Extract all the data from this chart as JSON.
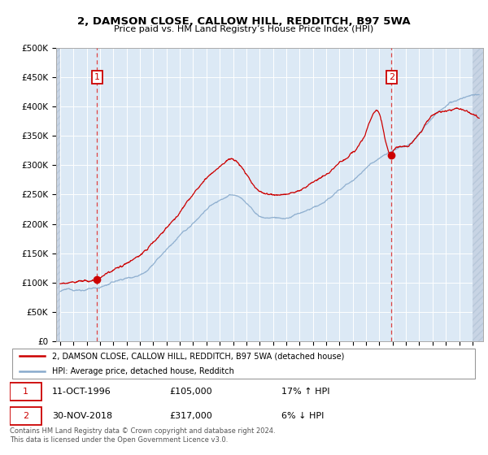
{
  "title": "2, DAMSON CLOSE, CALLOW HILL, REDDITCH, B97 5WA",
  "subtitle": "Price paid vs. HM Land Registry’s House Price Index (HPI)",
  "ylim": [
    0,
    500000
  ],
  "yticks": [
    0,
    50000,
    100000,
    150000,
    200000,
    250000,
    300000,
    350000,
    400000,
    450000,
    500000
  ],
  "ytick_labels": [
    "£0",
    "£50K",
    "£100K",
    "£150K",
    "£200K",
    "£250K",
    "£300K",
    "£350K",
    "£400K",
    "£450K",
    "£500K"
  ],
  "xlim_start": 1993.7,
  "xlim_end": 2025.8,
  "sale1_date": 1996.78,
  "sale1_price": 105000,
  "sale2_date": 2018.92,
  "sale2_price": 317000,
  "legend_line1": "2, DAMSON CLOSE, CALLOW HILL, REDDITCH, B97 5WA (detached house)",
  "legend_line2": "HPI: Average price, detached house, Redditch",
  "footer": "Contains HM Land Registry data © Crown copyright and database right 2024.\nThis data is licensed under the Open Government Licence v3.0.",
  "red_color": "#cc0000",
  "blue_color": "#88aacc",
  "bg_color": "#dce9f5",
  "grid_color": "#ffffff",
  "vline_color": "#dd4444"
}
